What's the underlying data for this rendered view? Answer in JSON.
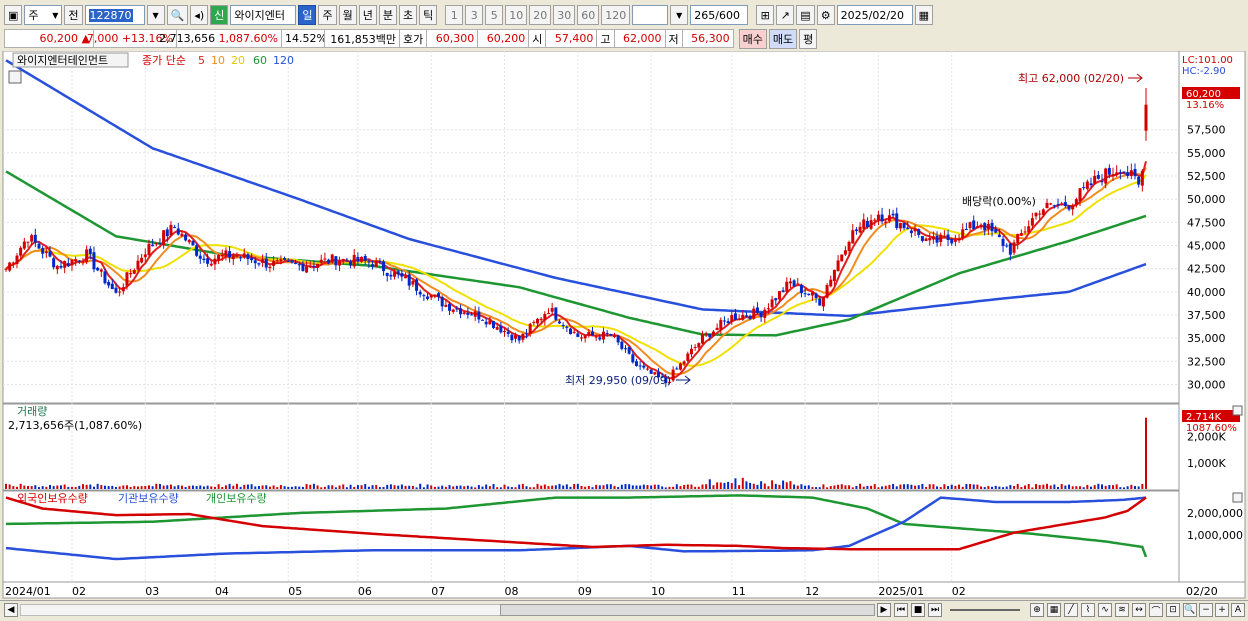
{
  "toolbar": {
    "type_label": "주",
    "prev_label": "전",
    "code": "122870",
    "name_tag": "신",
    "name": "와이지엔터",
    "period_tabs": [
      "일",
      "주",
      "월",
      "년",
      "분",
      "초",
      "틱"
    ],
    "active_period": "일",
    "intervals": [
      "1",
      "3",
      "5",
      "10",
      "20",
      "30",
      "60",
      "120"
    ],
    "count": "265",
    "count_total": "/600",
    "date": "2025/02/20"
  },
  "info": {
    "price": "60,200",
    "arrow": "▲",
    "change": "7,000",
    "change_pct": "+13.16%",
    "volume": "2,713,656",
    "volume_pct": "1,087.60%",
    "turnover": "14.52%",
    "amount": "161,853백만",
    "quote_label": "호가",
    "ask": "60,300",
    "bid": "60,200",
    "open_label": "시",
    "open": "57,400",
    "high_label": "고",
    "high": "62,000",
    "low_label": "저",
    "low": "56,300",
    "buy_label": "매수",
    "sell_label": "매도",
    "eval_label": "평"
  },
  "colors": {
    "up": "#d40000",
    "down": "#0028c8",
    "ma5": "#e02020",
    "ma10": "#f08c1e",
    "ma20": "#f0e000",
    "ma60": "#1e9632",
    "ma120": "#2850dc",
    "foreign": "#d40000",
    "inst": "#2850dc",
    "indiv": "#1e9632"
  },
  "chart_data": [
    {
      "type": "candlestick",
      "legend_title": "와이지엔터테인먼트",
      "legend_label": "종가 단순",
      "ma_periods": [
        "5",
        "10",
        "20",
        "60",
        "120"
      ],
      "right_top": "LC:101.00",
      "right_top2": "HC:-2.90",
      "last_price": "60,200",
      "last_pct": "13.16%",
      "high_annotation": "최고 62,000 (02/20)",
      "low_annotation": "최저 29,950 (09/09)",
      "div_annotation": "배당락(0.00%)",
      "ylim": [
        28000,
        66000
      ],
      "y_ticks": [
        "57,500",
        "55,000",
        "52,500",
        "50,000",
        "47,500",
        "45,000",
        "42,500",
        "40,000",
        "37,500",
        "35,000",
        "32,500",
        "30,000"
      ],
      "x_ticks": [
        "2024/01",
        "02",
        "03",
        "04",
        "05",
        "06",
        "07",
        "08",
        "09",
        "10",
        "11",
        "12",
        "2025/01",
        "02",
        "02/20"
      ],
      "close_anchors": [
        [
          0,
          42500
        ],
        [
          6,
          46000
        ],
        [
          14,
          42800
        ],
        [
          22,
          44000
        ],
        [
          30,
          39700
        ],
        [
          38,
          44500
        ],
        [
          46,
          47000
        ],
        [
          54,
          43500
        ],
        [
          62,
          44000
        ],
        [
          72,
          43000
        ],
        [
          80,
          42800
        ],
        [
          90,
          43500
        ],
        [
          100,
          43200
        ],
        [
          110,
          41000
        ],
        [
          120,
          38600
        ],
        [
          130,
          37300
        ],
        [
          140,
          34800
        ],
        [
          148,
          38200
        ],
        [
          156,
          35200
        ],
        [
          165,
          35300
        ],
        [
          172,
          32000
        ],
        [
          180,
          30200
        ],
        [
          190,
          35000
        ],
        [
          198,
          37300
        ],
        [
          206,
          37800
        ],
        [
          214,
          41000
        ],
        [
          222,
          39000
        ],
        [
          230,
          46000
        ],
        [
          238,
          48500
        ],
        [
          246,
          47000
        ],
        [
          252,
          45300
        ],
        [
          258,
          45800
        ],
        [
          266,
          47500
        ],
        [
          274,
          44500
        ],
        [
          282,
          49000
        ],
        [
          290,
          49500
        ],
        [
          298,
          52300
        ],
        [
          304,
          53500
        ],
        [
          308,
          52000
        ],
        [
          309,
          51400
        ],
        [
          310,
          53000
        ],
        [
          311,
          60200
        ]
      ],
      "ma60_anchors": [
        [
          0,
          53000
        ],
        [
          30,
          46000
        ],
        [
          60,
          44000
        ],
        [
          100,
          42800
        ],
        [
          140,
          40500
        ],
        [
          170,
          37200
        ],
        [
          190,
          35400
        ],
        [
          210,
          35300
        ],
        [
          230,
          37000
        ],
        [
          260,
          42000
        ],
        [
          290,
          45500
        ],
        [
          311,
          48200
        ]
      ],
      "ma120_anchors": [
        [
          0,
          65000
        ],
        [
          40,
          55500
        ],
        [
          80,
          50000
        ],
        [
          110,
          45700
        ],
        [
          150,
          41500
        ],
        [
          190,
          38100
        ],
        [
          230,
          37400
        ],
        [
          270,
          39200
        ],
        [
          290,
          40000
        ],
        [
          311,
          43000
        ]
      ]
    },
    {
      "type": "bar",
      "title": "거래량",
      "value_label": "2,713,656주(1,087.60%)",
      "last_label": "2.714K",
      "last_pct": "1087.60%",
      "y_ticks": [
        "2,000K",
        "1,000K"
      ],
      "ylim": [
        0,
        3200
      ],
      "spike_value": 2714
    },
    {
      "type": "line",
      "series": [
        {
          "name": "외국인보유수량"
        },
        {
          "name": "기관보유수량"
        },
        {
          "name": "개인보유수량"
        }
      ],
      "y_ticks": [
        "2,000,000",
        "1,000,000"
      ],
      "ylim": [
        -1100000,
        3000000
      ],
      "foreign": [
        [
          0,
          2700000
        ],
        [
          10,
          2200000
        ],
        [
          30,
          1900000
        ],
        [
          50,
          1950000
        ],
        [
          70,
          1400000
        ],
        [
          100,
          1050000
        ],
        [
          140,
          650000
        ],
        [
          160,
          450000
        ],
        [
          180,
          550000
        ],
        [
          200,
          500000
        ],
        [
          212,
          400000
        ],
        [
          230,
          350000
        ],
        [
          260,
          350000
        ],
        [
          275,
          1100000
        ],
        [
          300,
          1800000
        ],
        [
          306,
          2100000
        ],
        [
          311,
          2700000
        ]
      ],
      "inst": [
        [
          0,
          400000
        ],
        [
          30,
          -100000
        ],
        [
          60,
          150000
        ],
        [
          100,
          300000
        ],
        [
          140,
          300000
        ],
        [
          170,
          500000
        ],
        [
          185,
          250000
        ],
        [
          210,
          280000
        ],
        [
          220,
          300000
        ],
        [
          230,
          500000
        ],
        [
          245,
          1600000
        ],
        [
          255,
          2700000
        ],
        [
          270,
          2500000
        ],
        [
          290,
          2500000
        ],
        [
          305,
          2600000
        ],
        [
          311,
          2700000
        ]
      ],
      "indiv": [
        [
          0,
          1500000
        ],
        [
          40,
          1600000
        ],
        [
          80,
          2000000
        ],
        [
          120,
          2200000
        ],
        [
          150,
          2700000
        ],
        [
          170,
          2700000
        ],
        [
          200,
          2800000
        ],
        [
          220,
          2700000
        ],
        [
          235,
          2200000
        ],
        [
          245,
          1500000
        ],
        [
          260,
          1300000
        ],
        [
          280,
          1050000
        ],
        [
          300,
          700000
        ],
        [
          310,
          450000
        ],
        [
          311,
          0
        ]
      ]
    }
  ]
}
